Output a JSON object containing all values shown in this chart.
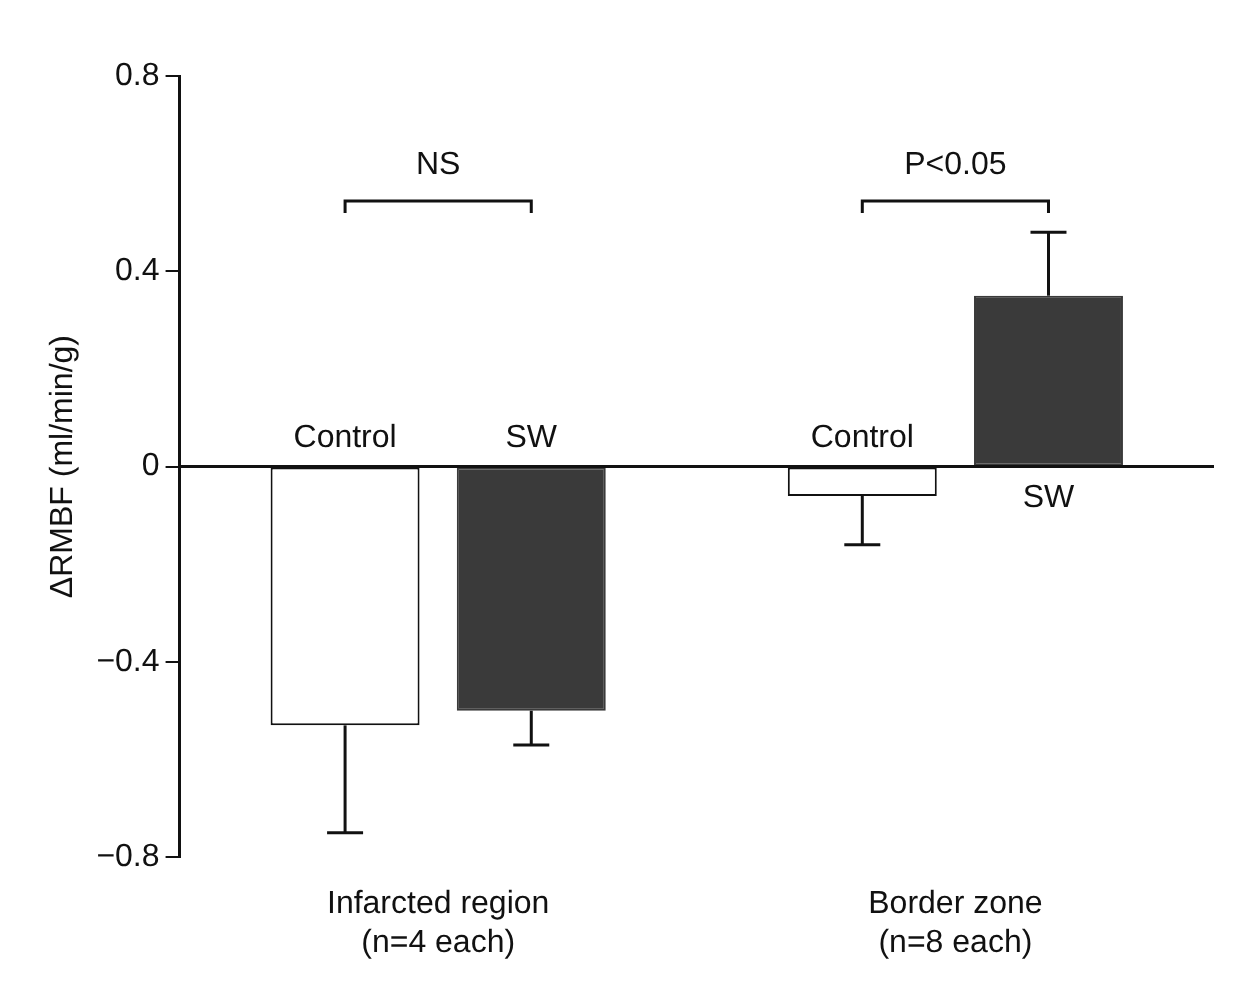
{
  "chart_data": {
    "type": "bar",
    "ylabel": "ΔRMBF (ml/min/g)",
    "categories": [
      "Infarcted region\n(n=4 each)",
      "Border zone\n(n=8 each)"
    ],
    "series": [
      {
        "name": "Control",
        "color": "#ffffff",
        "values": [
          -0.53,
          -0.06
        ],
        "errors": [
          [
            -0.75,
            -0.53
          ],
          [
            -0.16,
            -0.06
          ]
        ]
      },
      {
        "name": "SW",
        "color": "#3a3a3a",
        "values": [
          -0.5,
          0.35
        ],
        "errors": [
          [
            -0.57,
            -0.5
          ],
          [
            0.35,
            0.48
          ]
        ]
      }
    ],
    "ylim": [
      -0.8,
      0.8
    ],
    "yticks": [
      0.8,
      0.4,
      0,
      {
        "value": -0.4,
        "label": "−0.4"
      },
      {
        "value": -0.8,
        "label": "−0.8"
      }
    ],
    "grid": false,
    "legend": false,
    "ref_lines": [
      {
        "axis": "y",
        "value": 0,
        "color": "#111111"
      }
    ],
    "annotations": [
      "NS",
      "P<0.05"
    ]
  }
}
